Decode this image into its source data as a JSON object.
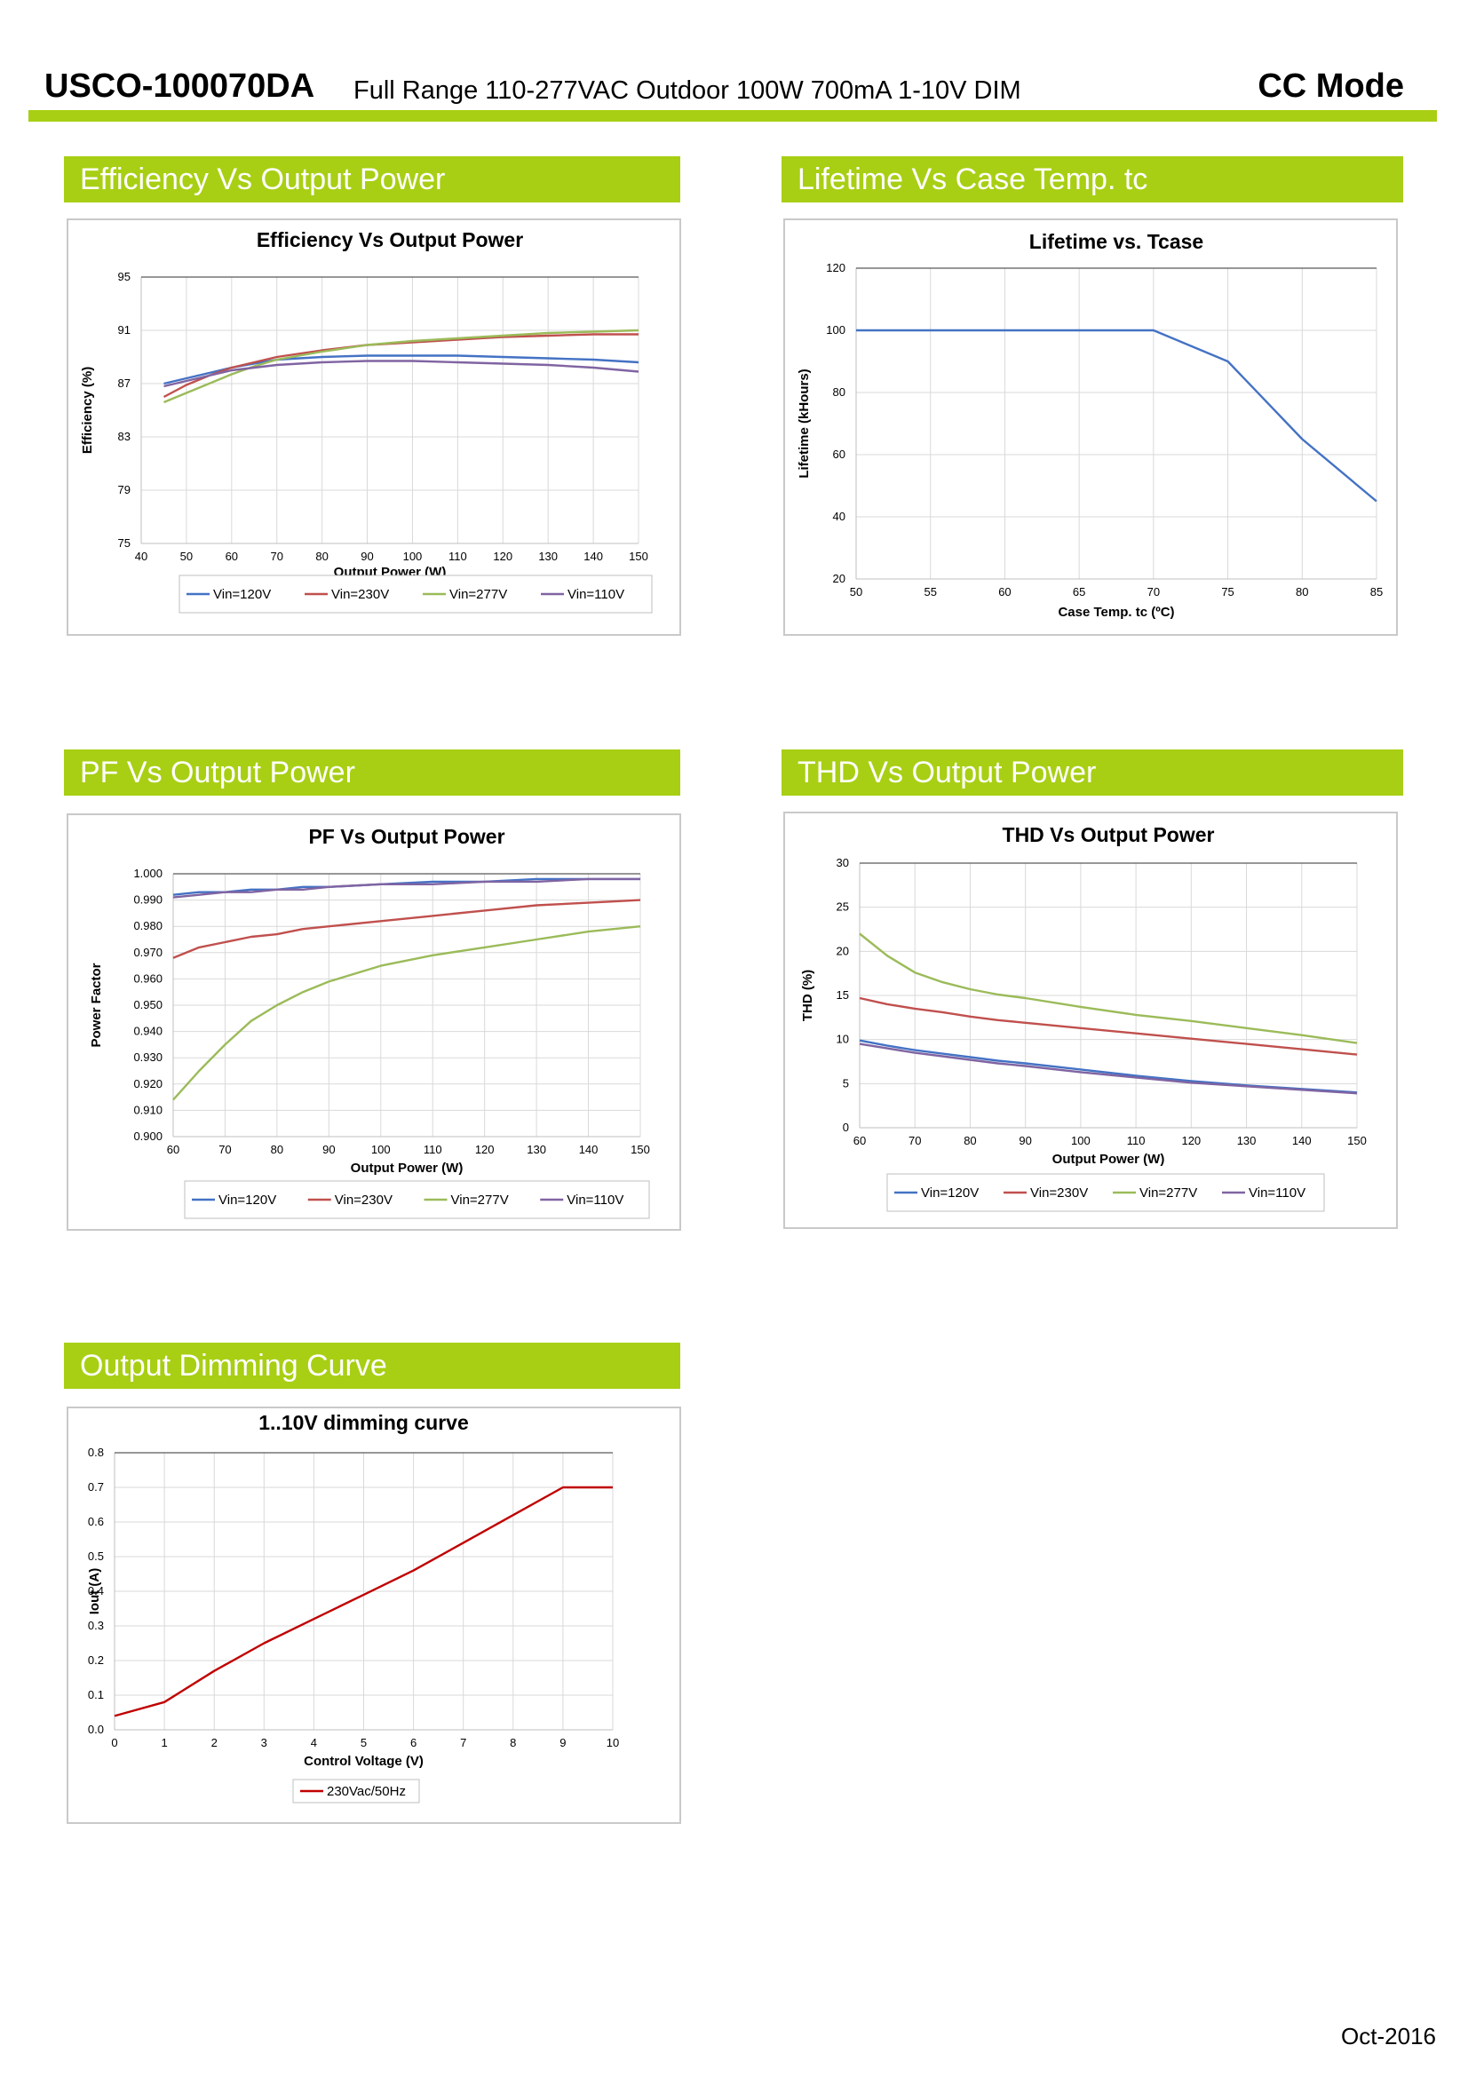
{
  "header": {
    "model": "USCO-100070DA",
    "description": "Full Range 110-277VAC Outdoor 100W 700mA 1-10V DIM",
    "mode": "CC Mode"
  },
  "footer": {
    "date": "Oct-2016"
  },
  "colors": {
    "accent": "#a8cf14",
    "vin120": "#4472c4",
    "vin230": "#c0504d",
    "vin277": "#9bbb59",
    "vin110": "#8064a2",
    "dimming": "#c00000"
  },
  "sections": {
    "efficiency": "Efficiency Vs Output Power",
    "lifetime": "Lifetime Vs Case Temp. tc",
    "pf": "PF Vs Output Power",
    "thd": "THD Vs Output Power",
    "dimming": "Output Dimming Curve"
  },
  "chart_data": [
    {
      "id": "efficiency",
      "type": "line",
      "title": "Efficiency Vs Output Power",
      "xlabel": "Output Power (W)",
      "ylabel": "Efficiency (%)",
      "xlim": [
        40,
        150
      ],
      "ylim": [
        75,
        95
      ],
      "xticks": [
        "40",
        "50",
        "60",
        "70",
        "80",
        "90",
        "100",
        "110",
        "120",
        "130",
        "140",
        "150"
      ],
      "yticks": [
        "75",
        "79",
        "83",
        "87",
        "91",
        "95"
      ],
      "grid": true,
      "legend": "bottom",
      "x": [
        45,
        50,
        55,
        60,
        65,
        70,
        80,
        90,
        100,
        110,
        120,
        130,
        140,
        150
      ],
      "series": [
        {
          "name": "Vin=120V",
          "color": "#4472c4",
          "values": [
            87.0,
            87.4,
            87.8,
            88.2,
            88.5,
            88.8,
            89.0,
            89.1,
            89.1,
            89.1,
            89.0,
            88.9,
            88.8,
            88.6
          ]
        },
        {
          "name": "Vin=230V",
          "color": "#c0504d",
          "values": [
            86.0,
            86.9,
            87.6,
            88.2,
            88.6,
            89.0,
            89.5,
            89.9,
            90.1,
            90.3,
            90.5,
            90.6,
            90.7,
            90.7
          ]
        },
        {
          "name": "Vin=277V",
          "color": "#9bbb59",
          "values": [
            85.6,
            86.3,
            87.0,
            87.7,
            88.3,
            88.8,
            89.4,
            89.9,
            90.2,
            90.4,
            90.6,
            90.8,
            90.9,
            91.0
          ]
        },
        {
          "name": "Vin=110V",
          "color": "#8064a2",
          "values": [
            86.8,
            87.2,
            87.6,
            88.0,
            88.2,
            88.4,
            88.6,
            88.7,
            88.7,
            88.6,
            88.5,
            88.4,
            88.2,
            87.9
          ]
        }
      ]
    },
    {
      "id": "lifetime",
      "type": "line",
      "title": "Lifetime vs. Tcase",
      "xlabel": "Case Temp. tc (ºC)",
      "ylabel": "Lifetime (kHours)",
      "xlim": [
        50,
        85
      ],
      "ylim": [
        20,
        120
      ],
      "xticks": [
        "50",
        "55",
        "60",
        "65",
        "70",
        "75",
        "80",
        "85"
      ],
      "yticks": [
        "20",
        "40",
        "60",
        "80",
        "100",
        "120"
      ],
      "grid": true,
      "x": [
        50,
        55,
        60,
        65,
        70,
        75,
        80,
        85
      ],
      "series": [
        {
          "name": "",
          "color": "#4472c4",
          "values": [
            100,
            100,
            100,
            100,
            100,
            90,
            65,
            45
          ]
        }
      ]
    },
    {
      "id": "pf",
      "type": "line",
      "title": "PF Vs Output Power",
      "xlabel": "Output Power (W)",
      "ylabel": "Power Factor",
      "xlim": [
        60,
        150
      ],
      "ylim": [
        0.9,
        1.0
      ],
      "xticks": [
        "60",
        "70",
        "80",
        "90",
        "100",
        "110",
        "120",
        "130",
        "140",
        "150"
      ],
      "yticks": [
        "0.900",
        "0.910",
        "0.920",
        "0.930",
        "0.940",
        "0.950",
        "0.960",
        "0.970",
        "0.980",
        "0.990",
        "1.000"
      ],
      "grid": true,
      "legend": "bottom",
      "x": [
        60,
        65,
        70,
        75,
        80,
        85,
        90,
        100,
        110,
        120,
        130,
        140,
        150
      ],
      "series": [
        {
          "name": "Vin=120V",
          "color": "#4472c4",
          "values": [
            0.992,
            0.993,
            0.993,
            0.994,
            0.994,
            0.995,
            0.995,
            0.996,
            0.997,
            0.997,
            0.998,
            0.998,
            0.998
          ]
        },
        {
          "name": "Vin=230V",
          "color": "#c0504d",
          "values": [
            0.968,
            0.972,
            0.974,
            0.976,
            0.977,
            0.979,
            0.98,
            0.982,
            0.984,
            0.986,
            0.988,
            0.989,
            0.99
          ]
        },
        {
          "name": "Vin=277V",
          "color": "#9bbb59",
          "values": [
            0.914,
            0.925,
            0.935,
            0.944,
            0.95,
            0.955,
            0.959,
            0.965,
            0.969,
            0.972,
            0.975,
            0.978,
            0.98
          ]
        },
        {
          "name": "Vin=110V",
          "color": "#8064a2",
          "values": [
            0.991,
            0.992,
            0.993,
            0.993,
            0.994,
            0.994,
            0.995,
            0.996,
            0.996,
            0.997,
            0.997,
            0.998,
            0.998
          ]
        }
      ]
    },
    {
      "id": "thd",
      "type": "line",
      "title": "THD Vs Output Power",
      "xlabel": "Output Power (W)",
      "ylabel": "THD (%)",
      "xlim": [
        60,
        150
      ],
      "ylim": [
        0,
        30
      ],
      "xticks": [
        "60",
        "70",
        "80",
        "90",
        "100",
        "110",
        "120",
        "130",
        "140",
        "150"
      ],
      "yticks": [
        "0",
        "5",
        "10",
        "15",
        "20",
        "25",
        "30"
      ],
      "grid": true,
      "legend": "bottom",
      "x": [
        60,
        65,
        70,
        75,
        80,
        85,
        90,
        100,
        110,
        120,
        130,
        140,
        150
      ],
      "series": [
        {
          "name": "Vin=120V",
          "color": "#4472c4",
          "values": [
            9.9,
            9.3,
            8.8,
            8.4,
            8.0,
            7.6,
            7.3,
            6.6,
            5.9,
            5.3,
            4.8,
            4.4,
            4.0
          ]
        },
        {
          "name": "Vin=230V",
          "color": "#c0504d",
          "values": [
            14.7,
            14.0,
            13.5,
            13.1,
            12.6,
            12.2,
            11.9,
            11.3,
            10.7,
            10.1,
            9.5,
            8.9,
            8.3
          ]
        },
        {
          "name": "Vin=277V",
          "color": "#9bbb59",
          "values": [
            22.0,
            19.5,
            17.6,
            16.5,
            15.7,
            15.1,
            14.7,
            13.7,
            12.8,
            12.1,
            11.3,
            10.5,
            9.6
          ]
        },
        {
          "name": "Vin=110V",
          "color": "#8064a2",
          "values": [
            9.5,
            9.0,
            8.5,
            8.1,
            7.7,
            7.3,
            7.0,
            6.3,
            5.7,
            5.1,
            4.7,
            4.3,
            3.9
          ]
        }
      ]
    },
    {
      "id": "dimming",
      "type": "line",
      "title": "1..10V dimming curve",
      "xlabel": "Control Voltage (V)",
      "ylabel": "Iout (A)",
      "xlim": [
        0,
        10
      ],
      "ylim": [
        0,
        0.8
      ],
      "xticks": [
        "0",
        "1",
        "2",
        "3",
        "4",
        "5",
        "6",
        "7",
        "8",
        "9",
        "10"
      ],
      "yticks": [
        "0.0",
        "0.1",
        "0.2",
        "0.3",
        "0.4",
        "0.5",
        "0.6",
        "0.7",
        "0.8"
      ],
      "grid": true,
      "legend": "bottom",
      "x": [
        0,
        1,
        2,
        3,
        4,
        5,
        6,
        7,
        8,
        9,
        10
      ],
      "series": [
        {
          "name": "230Vac/50Hz",
          "color": "#c00000",
          "values": [
            0.04,
            0.08,
            0.17,
            0.25,
            0.32,
            0.39,
            0.46,
            0.54,
            0.62,
            0.7,
            0.7
          ]
        }
      ]
    }
  ]
}
